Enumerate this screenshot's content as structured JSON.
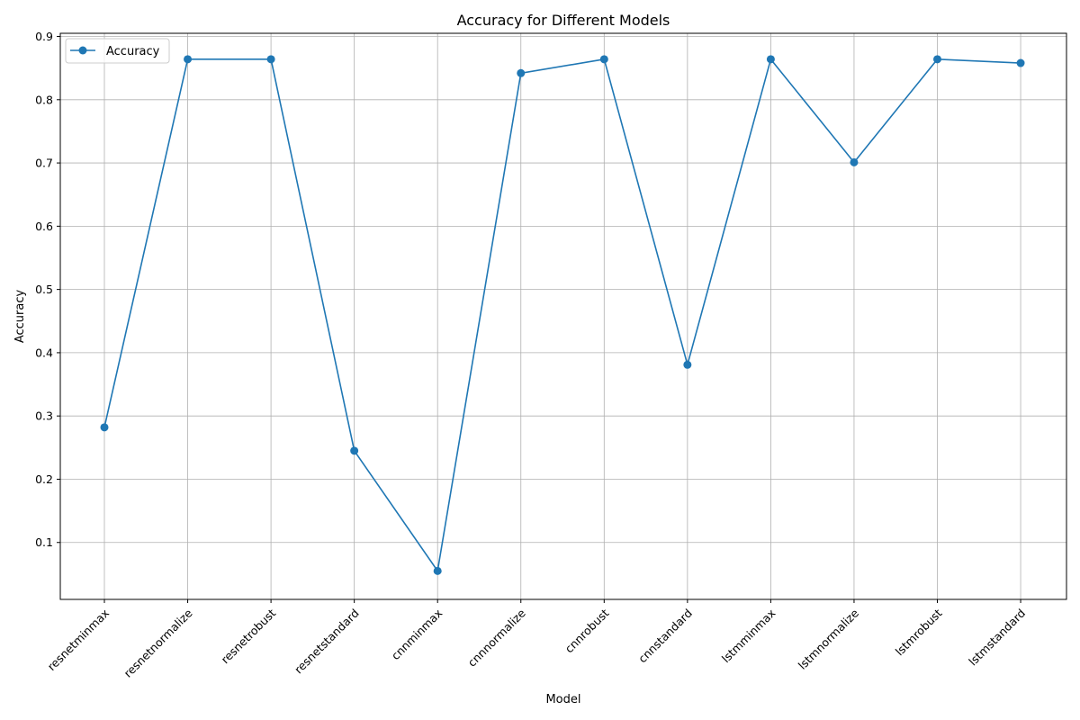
{
  "chart_data": {
    "type": "line",
    "title": "Accuracy for Different Models",
    "xlabel": "Model",
    "ylabel": "Accuracy",
    "categories": [
      "resnetminmax",
      "resnetnormalize",
      "resnetrobust",
      "resnetstandard",
      "cnnminmax",
      "cnnnormalize",
      "cnnrobust",
      "cnnstandard",
      "lstmminmax",
      "lstmnormalize",
      "lstmrobust",
      "lstmstandard"
    ],
    "series": [
      {
        "name": "Accuracy",
        "values": [
          0.282,
          0.864,
          0.864,
          0.245,
          0.055,
          0.842,
          0.864,
          0.381,
          0.864,
          0.701,
          0.864,
          0.858
        ]
      }
    ],
    "ylim": [
      0.01,
      0.905
    ],
    "yticks": [
      "0.1",
      "0.2",
      "0.3",
      "0.4",
      "0.5",
      "0.6",
      "0.7",
      "0.8",
      "0.9"
    ],
    "grid": true,
    "legend_position": "top-left",
    "colors": {
      "line": "#1f77b4",
      "grid": "#b0b0b0",
      "axis": "#000000"
    }
  }
}
